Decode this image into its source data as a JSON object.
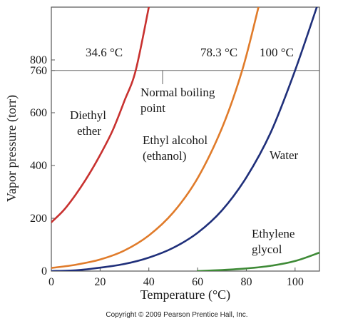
{
  "chart_data": {
    "type": "line",
    "xlabel": "Temperature (°C)",
    "ylabel": "Vapor pressure (torr)",
    "xlim": [
      0,
      110
    ],
    "ylim": [
      0,
      1000
    ],
    "x_ticks": [
      0,
      20,
      40,
      60,
      80,
      100
    ],
    "y_ticks": [
      0,
      200,
      400,
      600,
      760,
      800
    ],
    "grid": false,
    "reference_line": {
      "y": 760,
      "label_lines": [
        "Normal boiling",
        "point"
      ]
    },
    "boiling_point_labels": [
      "34.6 °C",
      "78.3 °C",
      "100 °C"
    ],
    "series": [
      {
        "name": "Diethyl ether",
        "label_lines": [
          "Diethyl",
          "ether"
        ],
        "color": "#c8312f",
        "x": [
          0,
          5,
          10,
          15,
          20,
          25,
          30,
          34.6,
          40
        ],
        "y": [
          185,
          230,
          290,
          360,
          440,
          530,
          645,
          760,
          1000
        ]
      },
      {
        "name": "Ethyl alcohol (ethanol)",
        "label_lines": [
          "Ethyl alcohol",
          "(ethanol)"
        ],
        "color": "#e07b2a",
        "x": [
          0,
          10,
          20,
          30,
          40,
          50,
          60,
          70,
          78.3,
          85
        ],
        "y": [
          12,
          24,
          44,
          78,
          135,
          222,
          352,
          542,
          760,
          1000
        ]
      },
      {
        "name": "Water",
        "label_lines": [
          "Water"
        ],
        "color": "#1f2f7a",
        "x": [
          0,
          10,
          20,
          30,
          40,
          50,
          60,
          70,
          80,
          90,
          100,
          110
        ],
        "y": [
          0,
          3,
          13,
          27,
          51,
          88,
          145,
          230,
          355,
          525,
          760,
          1030
        ]
      },
      {
        "name": "Ethylene glycol",
        "label_lines": [
          "Ethylene",
          "glycol"
        ],
        "color": "#3e8a36",
        "x": [
          60,
          70,
          80,
          90,
          100,
          110
        ],
        "y": [
          0,
          4,
          10,
          20,
          38,
          70
        ]
      }
    ]
  },
  "copyright": "Copyright © 2009 Pearson Prentice Hall, Inc."
}
